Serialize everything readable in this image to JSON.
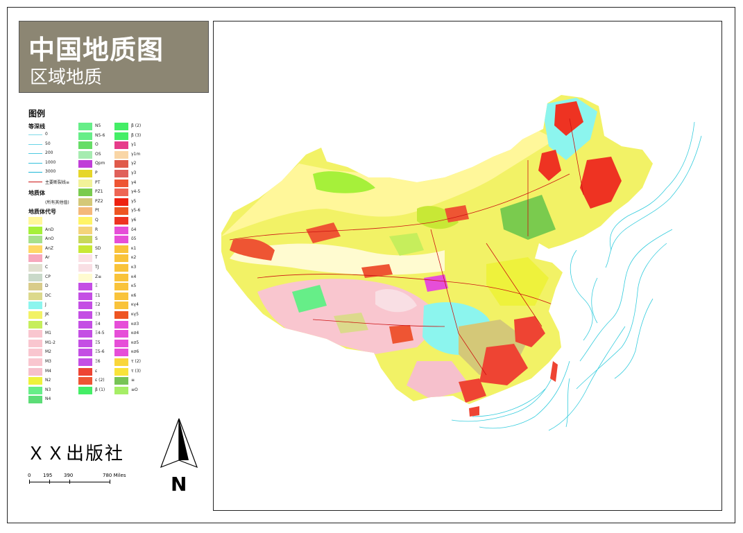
{
  "title": {
    "main": "中国地质图",
    "sub": "区域地质"
  },
  "publisher": "ＸＸ出版社",
  "north_label": "N",
  "scale": {
    "ticks": [
      "0",
      "195",
      "390",
      "780 Miles"
    ]
  },
  "legend": {
    "title": "图例",
    "depth_head": "等深线",
    "depth_lines": [
      {
        "label": "0",
        "color": "#7fd9e8"
      },
      {
        "label": "50",
        "color": "#66d3e6"
      },
      {
        "label": "200",
        "color": "#4cc9e0"
      },
      {
        "label": "1000",
        "color": "#33c0dc"
      },
      {
        "label": "3000",
        "color": "#1ab6d6"
      },
      {
        "label": "主要断裂线≡",
        "color": "#cc1111"
      }
    ],
    "body_head": "地质体",
    "body_items": [
      {
        "label": "(所有其他值)",
        "color": "#ffffff"
      }
    ],
    "code_head": "地质体代号",
    "col1": [
      {
        "label": "",
        "color": "#fff79a"
      },
      {
        "label": "AnD",
        "color": "#a6f03a"
      },
      {
        "label": "AnO",
        "color": "#a8e08c"
      },
      {
        "label": "AnZ",
        "color": "#ffd866"
      },
      {
        "label": "Ar",
        "color": "#f7a8bd"
      },
      {
        "label": "C",
        "color": "#e0e0d0"
      },
      {
        "label": "CP",
        "color": "#c9d9c9"
      },
      {
        "label": "D",
        "color": "#d9cc8a"
      },
      {
        "label": "DC",
        "color": "#dcd98c"
      },
      {
        "label": "J",
        "color": "#8cf5ee"
      },
      {
        "label": "JK",
        "color": "#f2f266"
      },
      {
        "label": "K",
        "color": "#c6ee5c"
      },
      {
        "label": "M1",
        "color": "#f9c6cf"
      },
      {
        "label": "M1-2",
        "color": "#f9c6cf"
      },
      {
        "label": "M2",
        "color": "#f9c6cf"
      },
      {
        "label": "M3",
        "color": "#f9c6cf"
      },
      {
        "label": "M4",
        "color": "#f6c0cc"
      },
      {
        "label": "N2",
        "color": "#eef23c"
      },
      {
        "label": "N3",
        "color": "#66ee88"
      },
      {
        "label": "N4",
        "color": "#5cdd77"
      }
    ],
    "col2": [
      {
        "label": "N5",
        "color": "#66ee88"
      },
      {
        "label": "N5-6",
        "color": "#66ee88"
      },
      {
        "label": "O",
        "color": "#66dd66"
      },
      {
        "label": "OS",
        "color": "#a6ecb0"
      },
      {
        "label": "Qpm",
        "color": "#c03ed8"
      },
      {
        "label": "P",
        "color": "#e6d62a"
      },
      {
        "label": "PT",
        "color": "#f2f299"
      },
      {
        "label": "PZ1",
        "color": "#7acb4e"
      },
      {
        "label": "PZ2",
        "color": "#d4c878"
      },
      {
        "label": "Pt",
        "color": "#f4b87a"
      },
      {
        "label": "Q",
        "color": "#fff466"
      },
      {
        "label": "R",
        "color": "#f4d47a"
      },
      {
        "label": "S",
        "color": "#c8d85a"
      },
      {
        "label": "SD",
        "color": "#c8e836"
      },
      {
        "label": "T",
        "color": "#fbe1e6"
      },
      {
        "label": "TJ",
        "color": "#f9dfe4"
      },
      {
        "label": "Z≡",
        "color": "#fffbd0"
      },
      {
        "label": "Ξ",
        "color": "#c44ee4"
      },
      {
        "label": "Ξ1",
        "color": "#c44ee4"
      },
      {
        "label": "Ξ2",
        "color": "#c44ee4"
      },
      {
        "label": "Ξ3",
        "color": "#c44ee4"
      },
      {
        "label": "Ξ4",
        "color": "#c44ee4"
      },
      {
        "label": "Ξ4-5",
        "color": "#c44ee4"
      },
      {
        "label": "Ξ5",
        "color": "#c44ee4"
      },
      {
        "label": "Ξ5-6",
        "color": "#c44ee4"
      },
      {
        "label": "Ξ6",
        "color": "#c44ee4"
      },
      {
        "label": "ε",
        "color": "#ee4433"
      },
      {
        "label": "ε (2)",
        "color": "#ee5533"
      },
      {
        "label": "β (1)",
        "color": "#44ee66"
      }
    ],
    "col3": [
      {
        "label": "β (2)",
        "color": "#44ee66"
      },
      {
        "label": "β (3)",
        "color": "#44ee66"
      },
      {
        "label": "γ1",
        "color": "#e63c8a"
      },
      {
        "label": "γ1m",
        "color": "#f9d6a6"
      },
      {
        "label": "γ2",
        "color": "#e05a4a"
      },
      {
        "label": "γ3",
        "color": "#e0605a"
      },
      {
        "label": "γ4",
        "color": "#ee5533"
      },
      {
        "label": "γ4-5",
        "color": "#ee6655"
      },
      {
        "label": "γ5",
        "color": "#ee2211"
      },
      {
        "label": "γ5-6",
        "color": "#ee5522"
      },
      {
        "label": "γ6",
        "color": "#ee3322"
      },
      {
        "label": "δ4",
        "color": "#e64ed8"
      },
      {
        "label": "δ5",
        "color": "#e64ed8"
      },
      {
        "label": "κ1",
        "color": "#f9c33a"
      },
      {
        "label": "κ2",
        "color": "#f9c33a"
      },
      {
        "label": "κ3",
        "color": "#f9c33a"
      },
      {
        "label": "κ4",
        "color": "#f9c33a"
      },
      {
        "label": "κ5",
        "color": "#f9c33a"
      },
      {
        "label": "κ6",
        "color": "#f9c33a"
      },
      {
        "label": "κγ4",
        "color": "#f9c33a"
      },
      {
        "label": "κγ5",
        "color": "#ee5522"
      },
      {
        "label": "κσ3",
        "color": "#e64ed8"
      },
      {
        "label": "κσ4",
        "color": "#e64ed8"
      },
      {
        "label": "κσ5",
        "color": "#e64ed8"
      },
      {
        "label": "κσ6",
        "color": "#e64ed8"
      },
      {
        "label": "τ (2)",
        "color": "#f9d63a"
      },
      {
        "label": "τ (3)",
        "color": "#f9e33a"
      },
      {
        "label": "≡",
        "color": "#77c455"
      },
      {
        "label": "≡O",
        "color": "#a6ee66"
      }
    ]
  }
}
